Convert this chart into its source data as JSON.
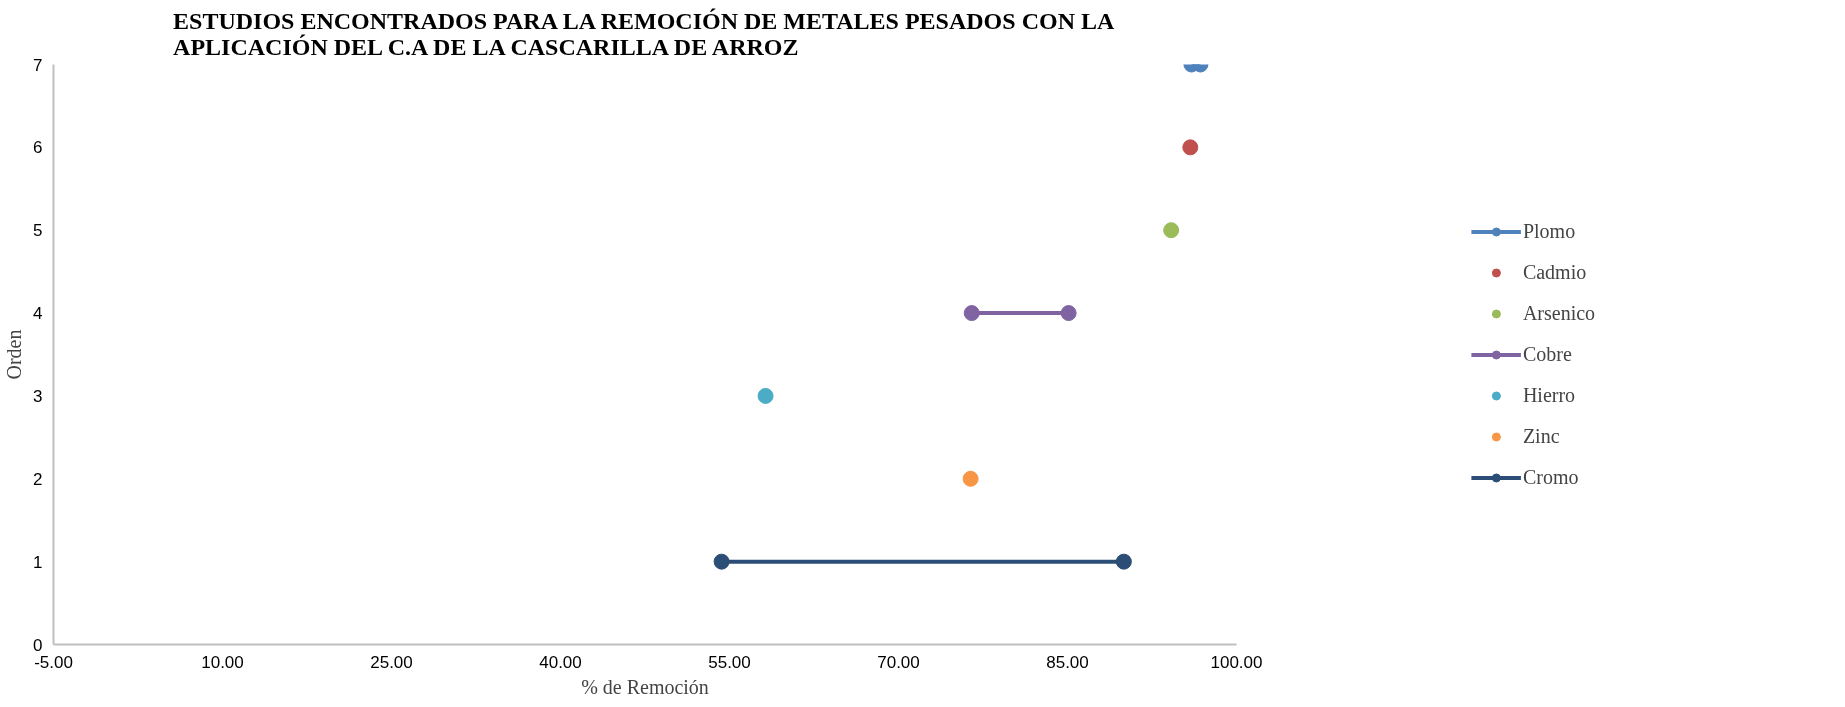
{
  "chart_data": {
    "type": "line",
    "title": "ESTUDIOS ENCONTRADOS PARA LA REMOCIÓN DE METALES PESADOS CON LA\nAPLICACIÓN DEL C.A DE LA CASCARILLA DE ARROZ",
    "xlabel": "% de Remoción",
    "ylabel": "Orden",
    "xlim": [
      -5,
      100
    ],
    "ylim": [
      0,
      7
    ],
    "xticks": [
      {
        "value": -5,
        "label": "-5.00"
      },
      {
        "value": 10,
        "label": "10.00"
      },
      {
        "value": 25,
        "label": "25.00"
      },
      {
        "value": 40,
        "label": "40.00"
      },
      {
        "value": 55,
        "label": "55.00"
      },
      {
        "value": 70,
        "label": "70.00"
      },
      {
        "value": 85,
        "label": "85.00"
      },
      {
        "value": 100,
        "label": "100.00"
      }
    ],
    "yticks": [
      0,
      1,
      2,
      3,
      4,
      5,
      6,
      7
    ],
    "grid": false,
    "legend": "right",
    "marker": "circle",
    "line_style": "solid",
    "series": [
      {
        "name": "Plomo",
        "color": "#4f81bd",
        "x": [
          96.0,
          96.8
        ],
        "values": [
          7,
          7
        ]
      },
      {
        "name": "Cadmio",
        "color": "#c0504d",
        "x": [
          95.9
        ],
        "values": [
          6
        ]
      },
      {
        "name": "Arsenico",
        "color": "#9bbb59",
        "x": [
          94.2
        ],
        "values": [
          5
        ]
      },
      {
        "name": "Cobre",
        "color": "#8064a2",
        "x": [
          76.5,
          85.1
        ],
        "values": [
          4,
          4
        ]
      },
      {
        "name": "Hierro",
        "color": "#4bacc6",
        "x": [
          58.2
        ],
        "values": [
          3
        ]
      },
      {
        "name": "Zinc",
        "color": "#f79646",
        "x": [
          76.4
        ],
        "values": [
          2
        ]
      },
      {
        "name": "Cromo",
        "color": "#2c4d75",
        "x": [
          54.3,
          90.0
        ],
        "values": [
          1,
          1
        ]
      }
    ]
  }
}
